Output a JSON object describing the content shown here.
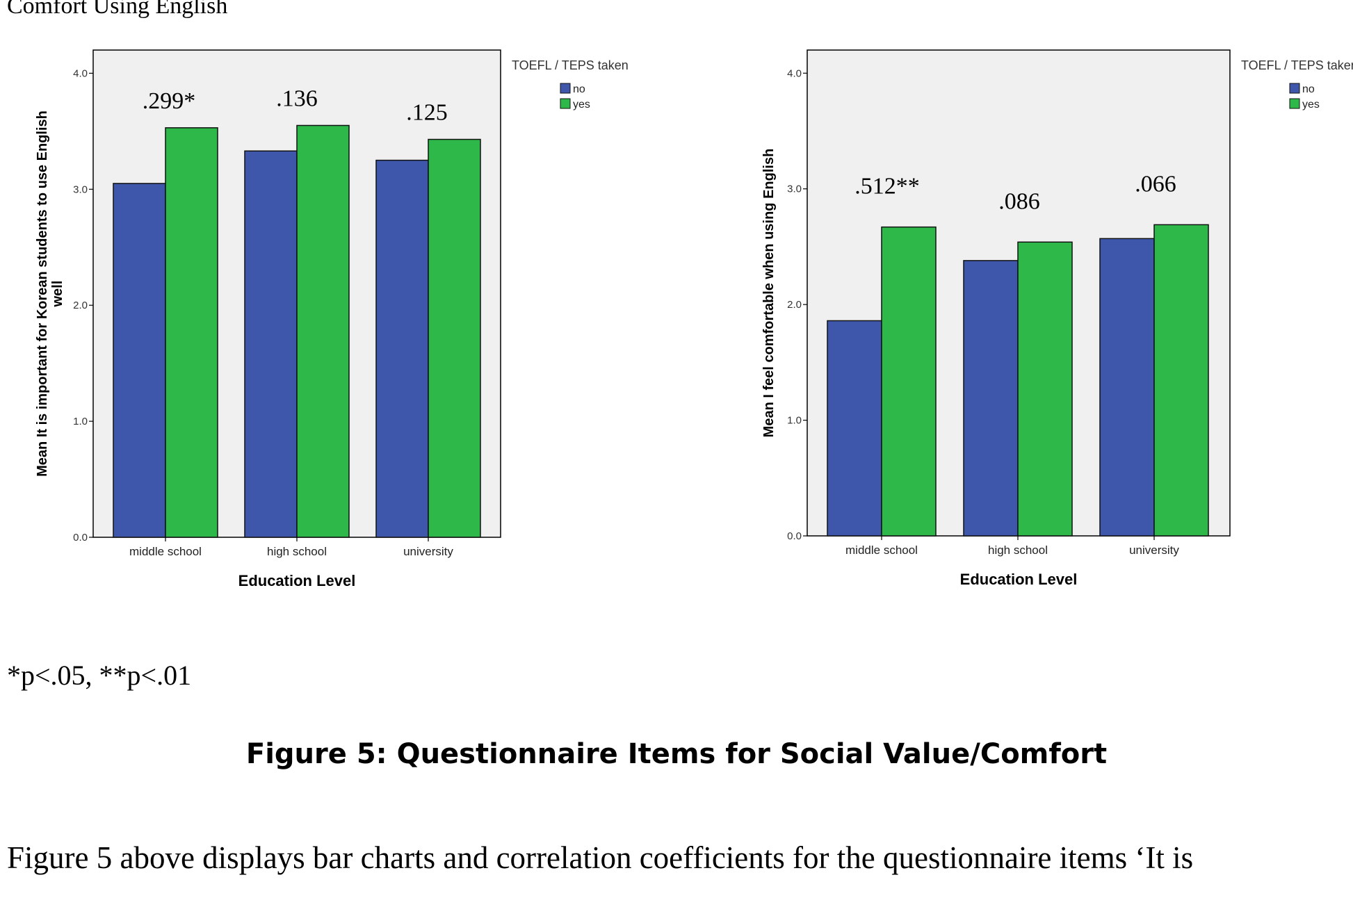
{
  "page": {
    "top_caption": "Comfort Using English",
    "significance_note": "*p<.05, **p<.01",
    "figure_caption": "Figure 5: Questionnaire Items for Social Value/Comfort",
    "body_text": "Figure 5 above displays bar charts and correlation coefficients for the questionnaire items ‘It is"
  },
  "colors": {
    "no": "#3e57aa",
    "yes": "#2eb84a",
    "plot_bg": "#f0f0f0"
  },
  "chart_data": [
    {
      "type": "bar",
      "title": "",
      "xlabel": "Education Level",
      "ylabel_lines": [
        "Mean It is important for Korean students to use English",
        "well"
      ],
      "categories": [
        "middle school",
        "high school",
        "university"
      ],
      "series": [
        {
          "name": "no",
          "values": [
            3.05,
            3.33,
            3.25
          ]
        },
        {
          "name": "yes",
          "values": [
            3.53,
            3.55,
            3.43
          ]
        }
      ],
      "annotations": [
        ".299*",
        ".136",
        ".125"
      ],
      "ylim": [
        0,
        4.2
      ],
      "yticks": [
        "0.0",
        "1.0",
        "2.0",
        "3.0",
        "4.0"
      ],
      "legend_title": "TOEFL / TEPS taken",
      "legend_position": "top-right"
    },
    {
      "type": "bar",
      "title": "",
      "xlabel": "Education Level",
      "ylabel_lines": [
        "Mean I feel comfortable when using English"
      ],
      "categories": [
        "middle school",
        "high school",
        "university"
      ],
      "series": [
        {
          "name": "no",
          "values": [
            1.86,
            2.38,
            2.57
          ]
        },
        {
          "name": "yes",
          "values": [
            2.67,
            2.54,
            2.69
          ]
        }
      ],
      "annotations": [
        ".512**",
        ".086",
        ".066"
      ],
      "ylim": [
        0,
        4.2
      ],
      "yticks": [
        "0.0",
        "1.0",
        "2.0",
        "3.0",
        "4.0"
      ],
      "legend_title": "TOEFL / TEPS taken",
      "legend_position": "top-right"
    }
  ]
}
